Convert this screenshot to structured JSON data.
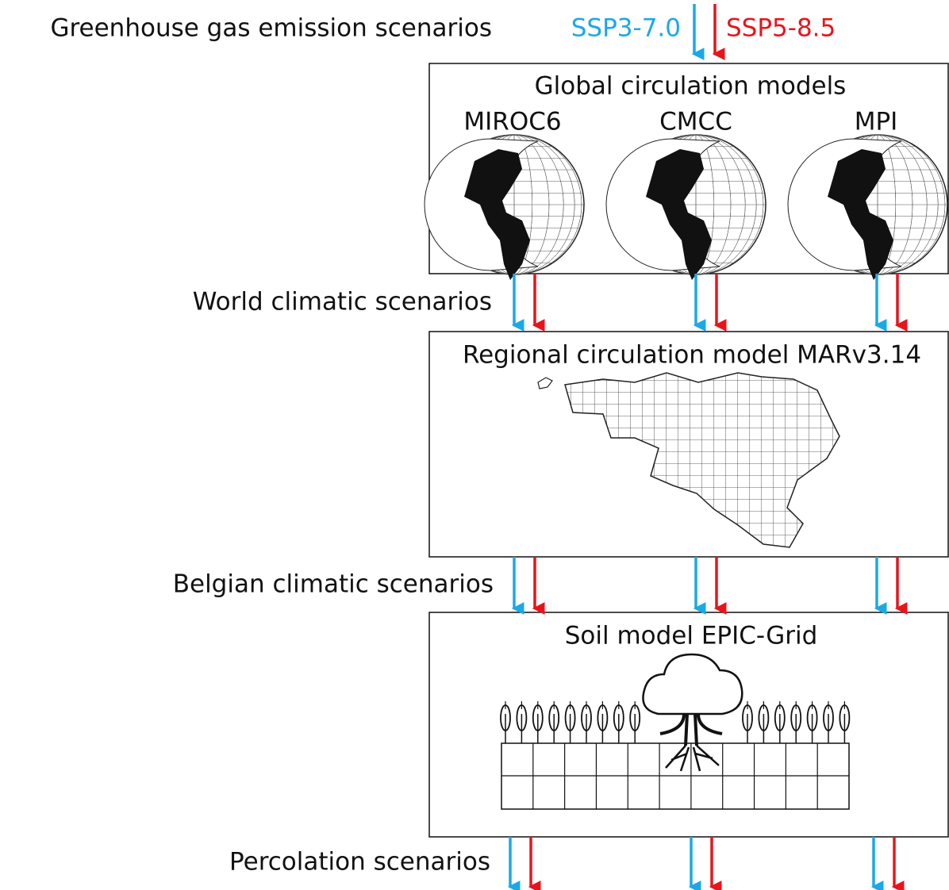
{
  "scenarios_label": "Greenhouse gas emission scenarios",
  "ssps": [
    {
      "name": "SSP3-7.0",
      "color": "#1aa9e6"
    },
    {
      "name": "SSP5-8.5",
      "color": "#e8141c"
    }
  ],
  "gcm": {
    "title": "Global circulation models",
    "models": [
      "MIROC6",
      "CMCC",
      "MPI"
    ]
  },
  "world_label": "World climatic scenarios",
  "rcm": {
    "title": "Regional circulation model MARv3.14"
  },
  "belgian_label": "Belgian climatic scenarios",
  "soil": {
    "title": "Soil model EPIC-Grid"
  },
  "percolation_label": "Percolation scenarios"
}
